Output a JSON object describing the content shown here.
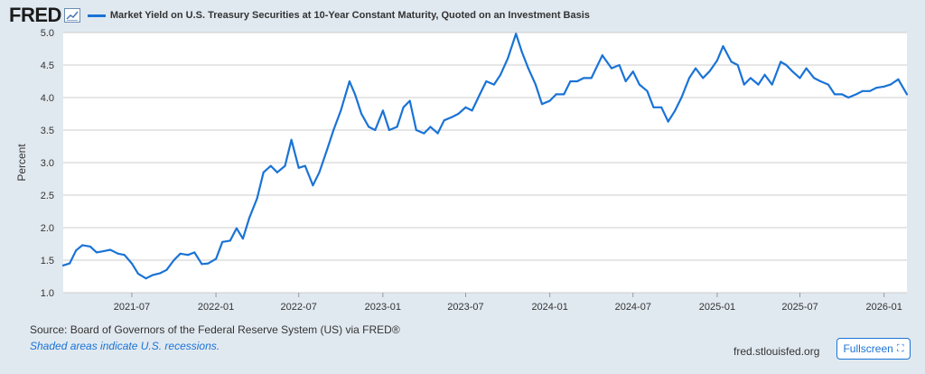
{
  "header": {
    "logo": "FRED",
    "icon": "chart-line-icon",
    "title": "Market Yield on U.S. Treasury Securities at 10-Year Constant Maturity, Quoted on an Investment Basis"
  },
  "footer": {
    "source": "Source: Board of Governors of the Federal Reserve System (US) via FRED®",
    "recession_note": "Shaded areas indicate U.S. recessions.",
    "site": "fred.stlouisfed.org",
    "fullscreen_label": "Fullscreen",
    "fullscreen_icon": "expand-icon"
  },
  "colors": {
    "line": "#1a73d6",
    "background": "#e1e9f0",
    "plot_background": "#ffffff",
    "grid": "#cccccc"
  },
  "chart_data": {
    "type": "line",
    "title": "Market Yield on U.S. Treasury Securities at 10-Year Constant Maturity, Quoted on an Investment Basis",
    "xlabel": "",
    "ylabel": "Percent",
    "ylim": [
      1.0,
      5.0
    ],
    "yticks": [
      "1.0",
      "1.5",
      "2.0",
      "2.5",
      "3.0",
      "3.5",
      "4.0",
      "4.5",
      "5.0"
    ],
    "xlim": [
      "2021-02-01",
      "2026-02-20"
    ],
    "xticks": [
      "2021-07",
      "2022-01",
      "2022-07",
      "2023-01",
      "2023-07",
      "2024-01",
      "2024-07",
      "2025-01",
      "2025-07",
      "2026-01"
    ],
    "grid": true,
    "legend": "top-left",
    "series": [
      {
        "name": "Market Yield on U.S. Treasury Securities at 10-Year Constant Maturity, Quoted on an Investment Basis",
        "x": [
          "2021-02-01",
          "2021-02-15",
          "2021-03-01",
          "2021-03-15",
          "2021-04-01",
          "2021-04-15",
          "2021-05-01",
          "2021-05-15",
          "2021-06-01",
          "2021-06-15",
          "2021-07-01",
          "2021-07-15",
          "2021-08-01",
          "2021-08-15",
          "2021-09-01",
          "2021-09-15",
          "2021-10-01",
          "2021-10-15",
          "2021-11-01",
          "2021-11-15",
          "2021-12-01",
          "2021-12-15",
          "2022-01-01",
          "2022-01-15",
          "2022-02-01",
          "2022-02-15",
          "2022-03-01",
          "2022-03-15",
          "2022-04-01",
          "2022-04-15",
          "2022-05-01",
          "2022-05-15",
          "2022-06-01",
          "2022-06-15",
          "2022-07-01",
          "2022-07-15",
          "2022-08-01",
          "2022-08-15",
          "2022-09-01",
          "2022-09-15",
          "2022-10-01",
          "2022-10-20",
          "2022-11-01",
          "2022-11-15",
          "2022-12-01",
          "2022-12-15",
          "2023-01-01",
          "2023-01-15",
          "2023-02-01",
          "2023-02-15",
          "2023-03-01",
          "2023-03-15",
          "2023-04-01",
          "2023-04-15",
          "2023-05-01",
          "2023-05-15",
          "2023-06-01",
          "2023-06-15",
          "2023-07-01",
          "2023-07-15",
          "2023-08-01",
          "2023-08-15",
          "2023-09-01",
          "2023-09-15",
          "2023-10-01",
          "2023-10-19",
          "2023-11-01",
          "2023-11-15",
          "2023-12-01",
          "2023-12-15",
          "2024-01-01",
          "2024-01-15",
          "2024-02-01",
          "2024-02-15",
          "2024-03-01",
          "2024-03-15",
          "2024-04-01",
          "2024-04-25",
          "2024-05-15",
          "2024-06-01",
          "2024-06-15",
          "2024-07-01",
          "2024-07-15",
          "2024-08-01",
          "2024-08-15",
          "2024-09-01",
          "2024-09-16",
          "2024-10-01",
          "2024-10-15",
          "2024-11-01",
          "2024-11-15",
          "2024-12-01",
          "2024-12-15",
          "2025-01-01",
          "2025-01-14",
          "2025-02-01",
          "2025-02-15",
          "2025-03-01",
          "2025-03-15",
          "2025-04-01",
          "2025-04-15",
          "2025-05-01",
          "2025-05-20",
          "2025-06-01",
          "2025-06-15",
          "2025-07-01",
          "2025-07-15",
          "2025-08-01",
          "2025-08-15",
          "2025-09-01",
          "2025-09-15",
          "2025-10-01",
          "2025-10-15",
          "2025-11-01",
          "2025-11-15",
          "2025-12-01",
          "2025-12-15",
          "2026-01-01",
          "2026-01-15",
          "2026-02-01",
          "2026-02-20"
        ],
        "y": [
          1.42,
          1.45,
          1.65,
          1.73,
          1.71,
          1.62,
          1.64,
          1.66,
          1.6,
          1.58,
          1.45,
          1.29,
          1.22,
          1.27,
          1.3,
          1.35,
          1.5,
          1.6,
          1.58,
          1.62,
          1.44,
          1.45,
          1.52,
          1.78,
          1.8,
          1.99,
          1.83,
          2.15,
          2.45,
          2.85,
          2.95,
          2.85,
          2.95,
          3.35,
          2.92,
          2.95,
          2.65,
          2.85,
          3.2,
          3.5,
          3.8,
          4.25,
          4.05,
          3.75,
          3.55,
          3.5,
          3.8,
          3.5,
          3.55,
          3.85,
          3.95,
          3.5,
          3.45,
          3.55,
          3.45,
          3.65,
          3.7,
          3.75,
          3.85,
          3.8,
          4.05,
          4.25,
          4.2,
          4.35,
          4.6,
          4.98,
          4.7,
          4.45,
          4.2,
          3.9,
          3.95,
          4.05,
          4.05,
          4.25,
          4.25,
          4.3,
          4.3,
          4.65,
          4.45,
          4.5,
          4.25,
          4.4,
          4.2,
          4.1,
          3.85,
          3.85,
          3.63,
          3.8,
          4.0,
          4.3,
          4.45,
          4.3,
          4.4,
          4.57,
          4.79,
          4.55,
          4.5,
          4.2,
          4.3,
          4.2,
          4.35,
          4.2,
          4.55,
          4.5,
          4.4,
          4.3,
          4.45,
          4.3,
          4.25,
          4.2,
          4.05,
          4.05,
          4.0,
          4.05,
          4.1,
          4.1,
          4.15,
          4.17,
          4.2,
          4.28,
          4.05
        ]
      }
    ]
  }
}
